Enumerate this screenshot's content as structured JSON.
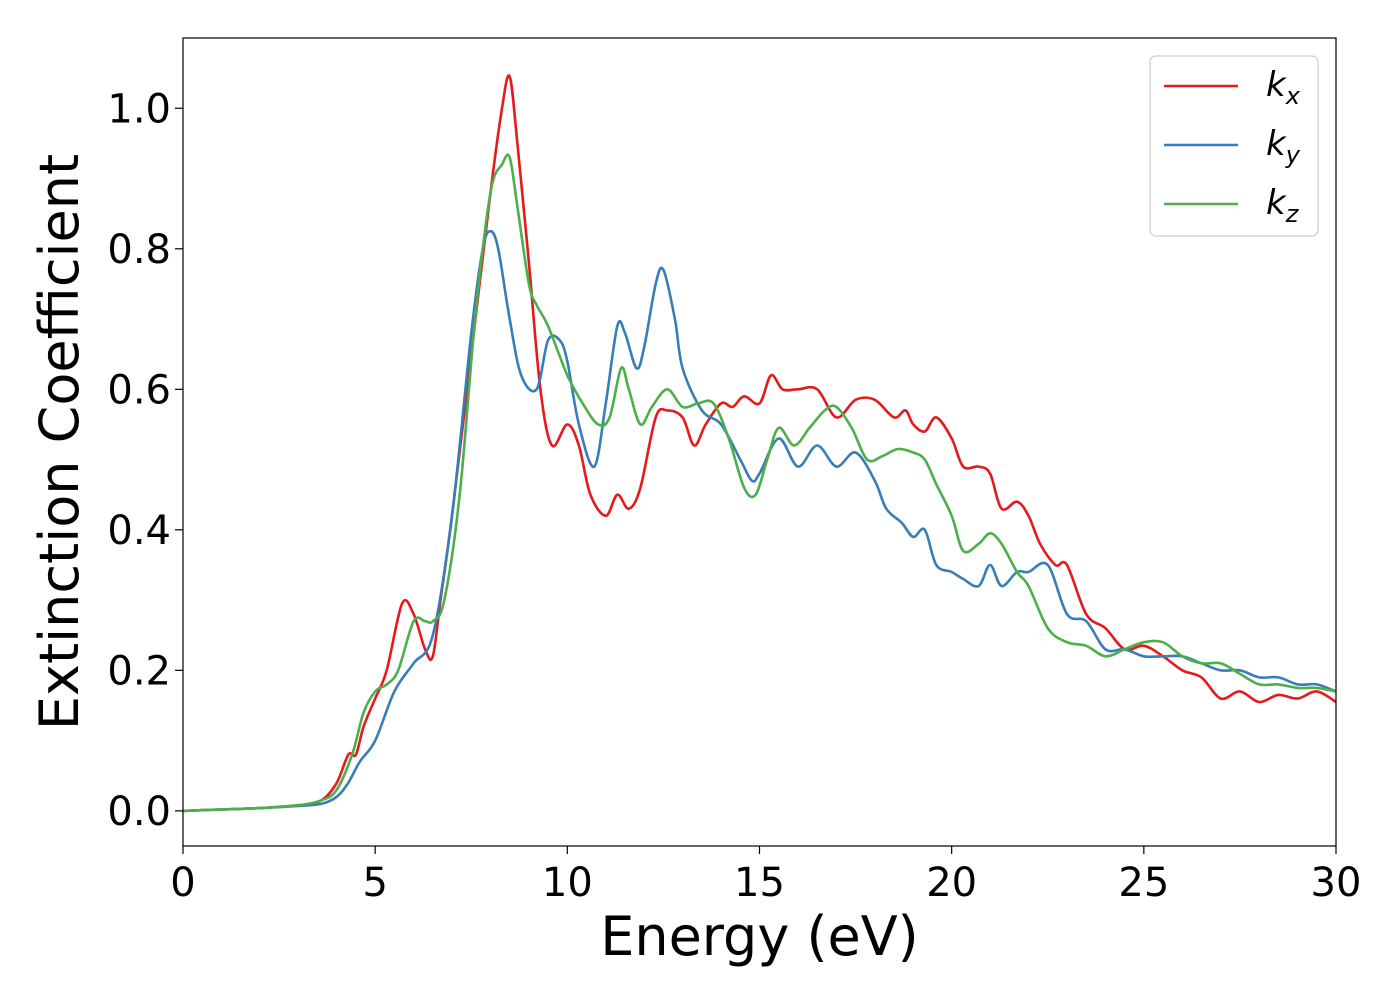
{
  "chart_data": {
    "type": "line",
    "xlabel": "Energy (eV)",
    "ylabel": "Extinction Coefficient",
    "xlim": [
      0,
      30
    ],
    "ylim": [
      -0.05,
      1.1
    ],
    "x_ticks": [
      "0",
      "5",
      "10",
      "15",
      "20",
      "25",
      "30"
    ],
    "y_ticks": [
      "0.0",
      "0.2",
      "0.4",
      "0.6",
      "0.8",
      "1.0"
    ],
    "grid": false,
    "legend_position": "top-right",
    "series": [
      {
        "name": "k_x",
        "label_base": "k",
        "label_sub": "x",
        "color": "#e41a1c",
        "x": [
          0,
          1,
          2,
          3,
          3.6,
          4.0,
          4.3,
          4.5,
          4.7,
          5.0,
          5.3,
          5.7,
          6.0,
          6.3,
          6.5,
          6.7,
          7.0,
          7.5,
          8.0,
          8.3,
          8.5,
          8.7,
          9.0,
          9.3,
          9.6,
          10.0,
          10.3,
          10.6,
          11.0,
          11.3,
          11.6,
          11.9,
          12.3,
          12.6,
          13.0,
          13.3,
          13.6,
          14.0,
          14.3,
          14.6,
          15.0,
          15.3,
          15.6,
          16.0,
          16.5,
          17.0,
          17.5,
          18.0,
          18.5,
          18.8,
          19.0,
          19.3,
          19.6,
          20.0,
          20.3,
          20.7,
          21.0,
          21.3,
          21.7,
          22.0,
          22.3,
          22.7,
          23.0,
          23.5,
          24.0,
          24.5,
          25.0,
          25.5,
          26.0,
          26.5,
          27.0,
          27.5,
          28.0,
          28.5,
          29.0,
          29.5,
          30.0
        ],
        "values": [
          0.0,
          0.002,
          0.004,
          0.008,
          0.015,
          0.04,
          0.08,
          0.08,
          0.12,
          0.16,
          0.2,
          0.295,
          0.28,
          0.23,
          0.22,
          0.3,
          0.42,
          0.65,
          0.88,
          1.0,
          1.045,
          0.95,
          0.78,
          0.6,
          0.52,
          0.55,
          0.52,
          0.45,
          0.42,
          0.45,
          0.43,
          0.46,
          0.56,
          0.57,
          0.56,
          0.52,
          0.55,
          0.58,
          0.575,
          0.59,
          0.58,
          0.62,
          0.6,
          0.6,
          0.6,
          0.56,
          0.585,
          0.585,
          0.56,
          0.57,
          0.55,
          0.54,
          0.56,
          0.53,
          0.49,
          0.49,
          0.48,
          0.43,
          0.44,
          0.42,
          0.38,
          0.35,
          0.35,
          0.28,
          0.26,
          0.23,
          0.235,
          0.22,
          0.2,
          0.19,
          0.16,
          0.17,
          0.155,
          0.165,
          0.16,
          0.17,
          0.155
        ]
      },
      {
        "name": "k_y",
        "label_base": "k",
        "label_sub": "y",
        "color": "#377eb8",
        "x": [
          0,
          1,
          2,
          3,
          3.6,
          4.0,
          4.3,
          4.6,
          5.0,
          5.5,
          6.0,
          6.5,
          7.0,
          7.5,
          7.8,
          8.0,
          8.2,
          8.5,
          8.8,
          9.2,
          9.5,
          9.8,
          10.0,
          10.3,
          10.7,
          11.0,
          11.3,
          11.5,
          11.8,
          12.0,
          12.3,
          12.5,
          12.8,
          13.0,
          13.5,
          14.0,
          14.5,
          14.8,
          15.0,
          15.5,
          16.0,
          16.5,
          17.0,
          17.5,
          18.0,
          18.3,
          18.7,
          19.0,
          19.3,
          19.6,
          20.0,
          20.3,
          20.7,
          21.0,
          21.3,
          21.7,
          22.0,
          22.5,
          23.0,
          23.5,
          24.0,
          24.5,
          25.0,
          25.5,
          26.0,
          26.5,
          27.0,
          27.5,
          28.0,
          28.5,
          29.0,
          29.5,
          30.0
        ],
        "values": [
          0.0,
          0.002,
          0.004,
          0.007,
          0.01,
          0.02,
          0.04,
          0.07,
          0.1,
          0.17,
          0.21,
          0.25,
          0.42,
          0.68,
          0.8,
          0.825,
          0.8,
          0.7,
          0.62,
          0.6,
          0.67,
          0.67,
          0.64,
          0.55,
          0.49,
          0.58,
          0.69,
          0.68,
          0.63,
          0.66,
          0.75,
          0.77,
          0.7,
          0.63,
          0.57,
          0.55,
          0.5,
          0.47,
          0.48,
          0.53,
          0.49,
          0.52,
          0.49,
          0.51,
          0.47,
          0.43,
          0.41,
          0.39,
          0.4,
          0.35,
          0.34,
          0.33,
          0.32,
          0.35,
          0.32,
          0.34,
          0.34,
          0.35,
          0.28,
          0.27,
          0.23,
          0.23,
          0.22,
          0.22,
          0.22,
          0.21,
          0.2,
          0.2,
          0.19,
          0.19,
          0.18,
          0.18,
          0.17
        ]
      },
      {
        "name": "k_z",
        "label_base": "k",
        "label_sub": "z",
        "color": "#4daf4a",
        "x": [
          0,
          1,
          2,
          3,
          3.6,
          4.0,
          4.4,
          4.7,
          5.0,
          5.3,
          5.6,
          6.0,
          6.3,
          6.5,
          6.8,
          7.2,
          7.6,
          8.0,
          8.3,
          8.5,
          8.7,
          9.0,
          9.2,
          9.5,
          10.0,
          10.4,
          10.8,
          11.1,
          11.4,
          11.6,
          11.9,
          12.2,
          12.6,
          13.0,
          13.4,
          13.8,
          14.2,
          14.6,
          14.9,
          15.2,
          15.5,
          15.9,
          16.3,
          16.7,
          17.0,
          17.4,
          17.8,
          18.2,
          18.6,
          19.0,
          19.3,
          19.6,
          20.0,
          20.3,
          20.7,
          21.0,
          21.3,
          21.7,
          22.0,
          22.5,
          23.0,
          23.5,
          24.0,
          24.5,
          25.0,
          25.5,
          26.0,
          26.5,
          27.0,
          27.5,
          28.0,
          28.5,
          29.0,
          29.5,
          30.0
        ],
        "values": [
          0.0,
          0.002,
          0.004,
          0.008,
          0.015,
          0.03,
          0.08,
          0.14,
          0.17,
          0.18,
          0.2,
          0.27,
          0.27,
          0.27,
          0.3,
          0.45,
          0.7,
          0.88,
          0.92,
          0.93,
          0.86,
          0.75,
          0.72,
          0.69,
          0.62,
          0.58,
          0.55,
          0.56,
          0.63,
          0.6,
          0.55,
          0.575,
          0.6,
          0.575,
          0.58,
          0.58,
          0.53,
          0.46,
          0.45,
          0.5,
          0.545,
          0.52,
          0.545,
          0.57,
          0.575,
          0.545,
          0.5,
          0.505,
          0.515,
          0.51,
          0.5,
          0.465,
          0.42,
          0.37,
          0.38,
          0.395,
          0.38,
          0.34,
          0.32,
          0.26,
          0.24,
          0.235,
          0.22,
          0.23,
          0.24,
          0.24,
          0.22,
          0.21,
          0.21,
          0.195,
          0.18,
          0.18,
          0.175,
          0.175,
          0.17
        ]
      }
    ]
  }
}
